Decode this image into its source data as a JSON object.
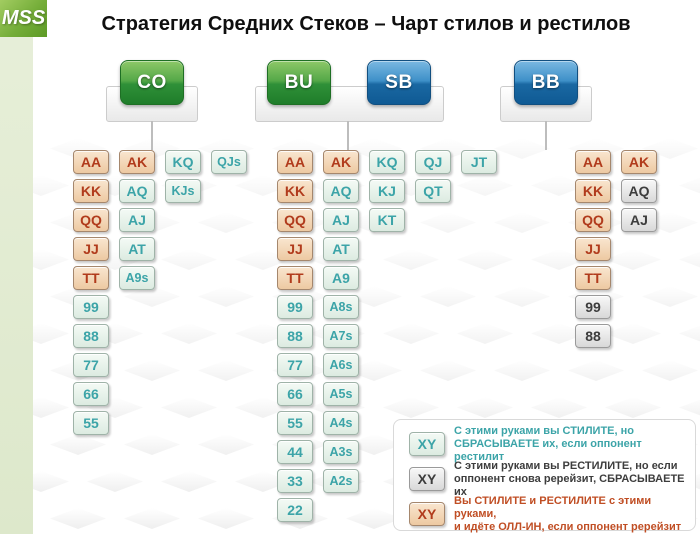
{
  "logo": {
    "text": "MSS"
  },
  "title": "Стратегия Средних Стеков – Чарт стилов и рестилов",
  "groups": [
    {
      "id": "co",
      "buttons": [
        {
          "label": "CO",
          "color": "green"
        }
      ],
      "columns": [
        [
          {
            "hand": "AA",
            "style": "a"
          },
          {
            "hand": "KK",
            "style": "a"
          },
          {
            "hand": "QQ",
            "style": "a"
          },
          {
            "hand": "JJ",
            "style": "a"
          },
          {
            "hand": "TT",
            "style": "a"
          },
          {
            "hand": "99",
            "style": "s"
          },
          {
            "hand": "88",
            "style": "s"
          },
          {
            "hand": "77",
            "style": "s"
          },
          {
            "hand": "66",
            "style": "s"
          },
          {
            "hand": "55",
            "style": "s"
          }
        ],
        [
          {
            "hand": "AK",
            "style": "a"
          },
          {
            "hand": "AQ",
            "style": "s"
          },
          {
            "hand": "AJ",
            "style": "s"
          },
          {
            "hand": "AT",
            "style": "s"
          },
          {
            "hand": "A9s",
            "style": "s"
          }
        ],
        [
          {
            "hand": "KQ",
            "style": "s"
          },
          {
            "hand": "KJs",
            "style": "s"
          }
        ],
        [
          {
            "hand": "QJs",
            "style": "s"
          }
        ]
      ]
    },
    {
      "id": "busb",
      "buttons": [
        {
          "label": "BU",
          "color": "green"
        },
        {
          "label": "SB",
          "color": "blue"
        }
      ],
      "columns": [
        [
          {
            "hand": "AA",
            "style": "a"
          },
          {
            "hand": "KK",
            "style": "a"
          },
          {
            "hand": "QQ",
            "style": "a"
          },
          {
            "hand": "JJ",
            "style": "a"
          },
          {
            "hand": "TT",
            "style": "a"
          },
          {
            "hand": "99",
            "style": "s"
          },
          {
            "hand": "88",
            "style": "s"
          },
          {
            "hand": "77",
            "style": "s"
          },
          {
            "hand": "66",
            "style": "s"
          },
          {
            "hand": "55",
            "style": "s"
          },
          {
            "hand": "44",
            "style": "s"
          },
          {
            "hand": "33",
            "style": "s"
          },
          {
            "hand": "22",
            "style": "s"
          }
        ],
        [
          {
            "hand": "AK",
            "style": "a"
          },
          {
            "hand": "AQ",
            "style": "s"
          },
          {
            "hand": "AJ",
            "style": "s"
          },
          {
            "hand": "AT",
            "style": "s"
          },
          {
            "hand": "A9",
            "style": "s"
          },
          {
            "hand": "A8s",
            "style": "s"
          },
          {
            "hand": "A7s",
            "style": "s"
          },
          {
            "hand": "A6s",
            "style": "s"
          },
          {
            "hand": "A5s",
            "style": "s"
          },
          {
            "hand": "A4s",
            "style": "s"
          },
          {
            "hand": "A3s",
            "style": "s"
          },
          {
            "hand": "A2s",
            "style": "s"
          }
        ],
        [
          {
            "hand": "KQ",
            "style": "s"
          },
          {
            "hand": "KJ",
            "style": "s"
          },
          {
            "hand": "KT",
            "style": "s"
          }
        ],
        [
          {
            "hand": "QJ",
            "style": "s"
          },
          {
            "hand": "QT",
            "style": "s"
          }
        ],
        [
          {
            "hand": "JT",
            "style": "s"
          }
        ]
      ]
    },
    {
      "id": "bb",
      "buttons": [
        {
          "label": "BB",
          "color": "blue"
        }
      ],
      "columns": [
        [
          {
            "hand": "AA",
            "style": "a"
          },
          {
            "hand": "KK",
            "style": "a"
          },
          {
            "hand": "QQ",
            "style": "a"
          },
          {
            "hand": "JJ",
            "style": "a"
          },
          {
            "hand": "TT",
            "style": "a"
          },
          {
            "hand": "99",
            "style": "r"
          },
          {
            "hand": "88",
            "style": "r"
          }
        ],
        [
          {
            "hand": "AK",
            "style": "a"
          },
          {
            "hand": "AQ",
            "style": "r"
          },
          {
            "hand": "AJ",
            "style": "r"
          }
        ]
      ]
    }
  ],
  "legend": {
    "items": [
      {
        "cell": "XY",
        "style": "s",
        "lines": [
          "С этими руками вы СТИЛИТЕ, но",
          "СБРАСЫВАЕТЕ их, если оппонент рестилит"
        ]
      },
      {
        "cell": "XY",
        "style": "r",
        "lines": [
          "С этими руками вы РЕСТИЛИТЕ, но если",
          "оппонент снова ререйзит, СБРАСЫВАЕТЕ их"
        ]
      },
      {
        "cell": "XY",
        "style": "a",
        "lines": [
          "Вы СТИЛИТЕ и РЕСТИЛИТЕ с этими руками,",
          "и идёте ОЛЛ-ИН, если оппонент ререйзит"
        ]
      }
    ]
  },
  "colors": {
    "green_button": "#2f9038",
    "blue_button": "#1a68a2",
    "steal_cell_bg": "#dcebe1",
    "steal_text": "#3ca4a8",
    "resteal_cell_bg": "#d8d8d8",
    "resteal_text": "#3d3d3d",
    "allin_cell_bg": "#edc9a2",
    "allin_text": "#b13b1c",
    "sidebar": "#dde8cb",
    "logo_green": "#74ad38"
  }
}
